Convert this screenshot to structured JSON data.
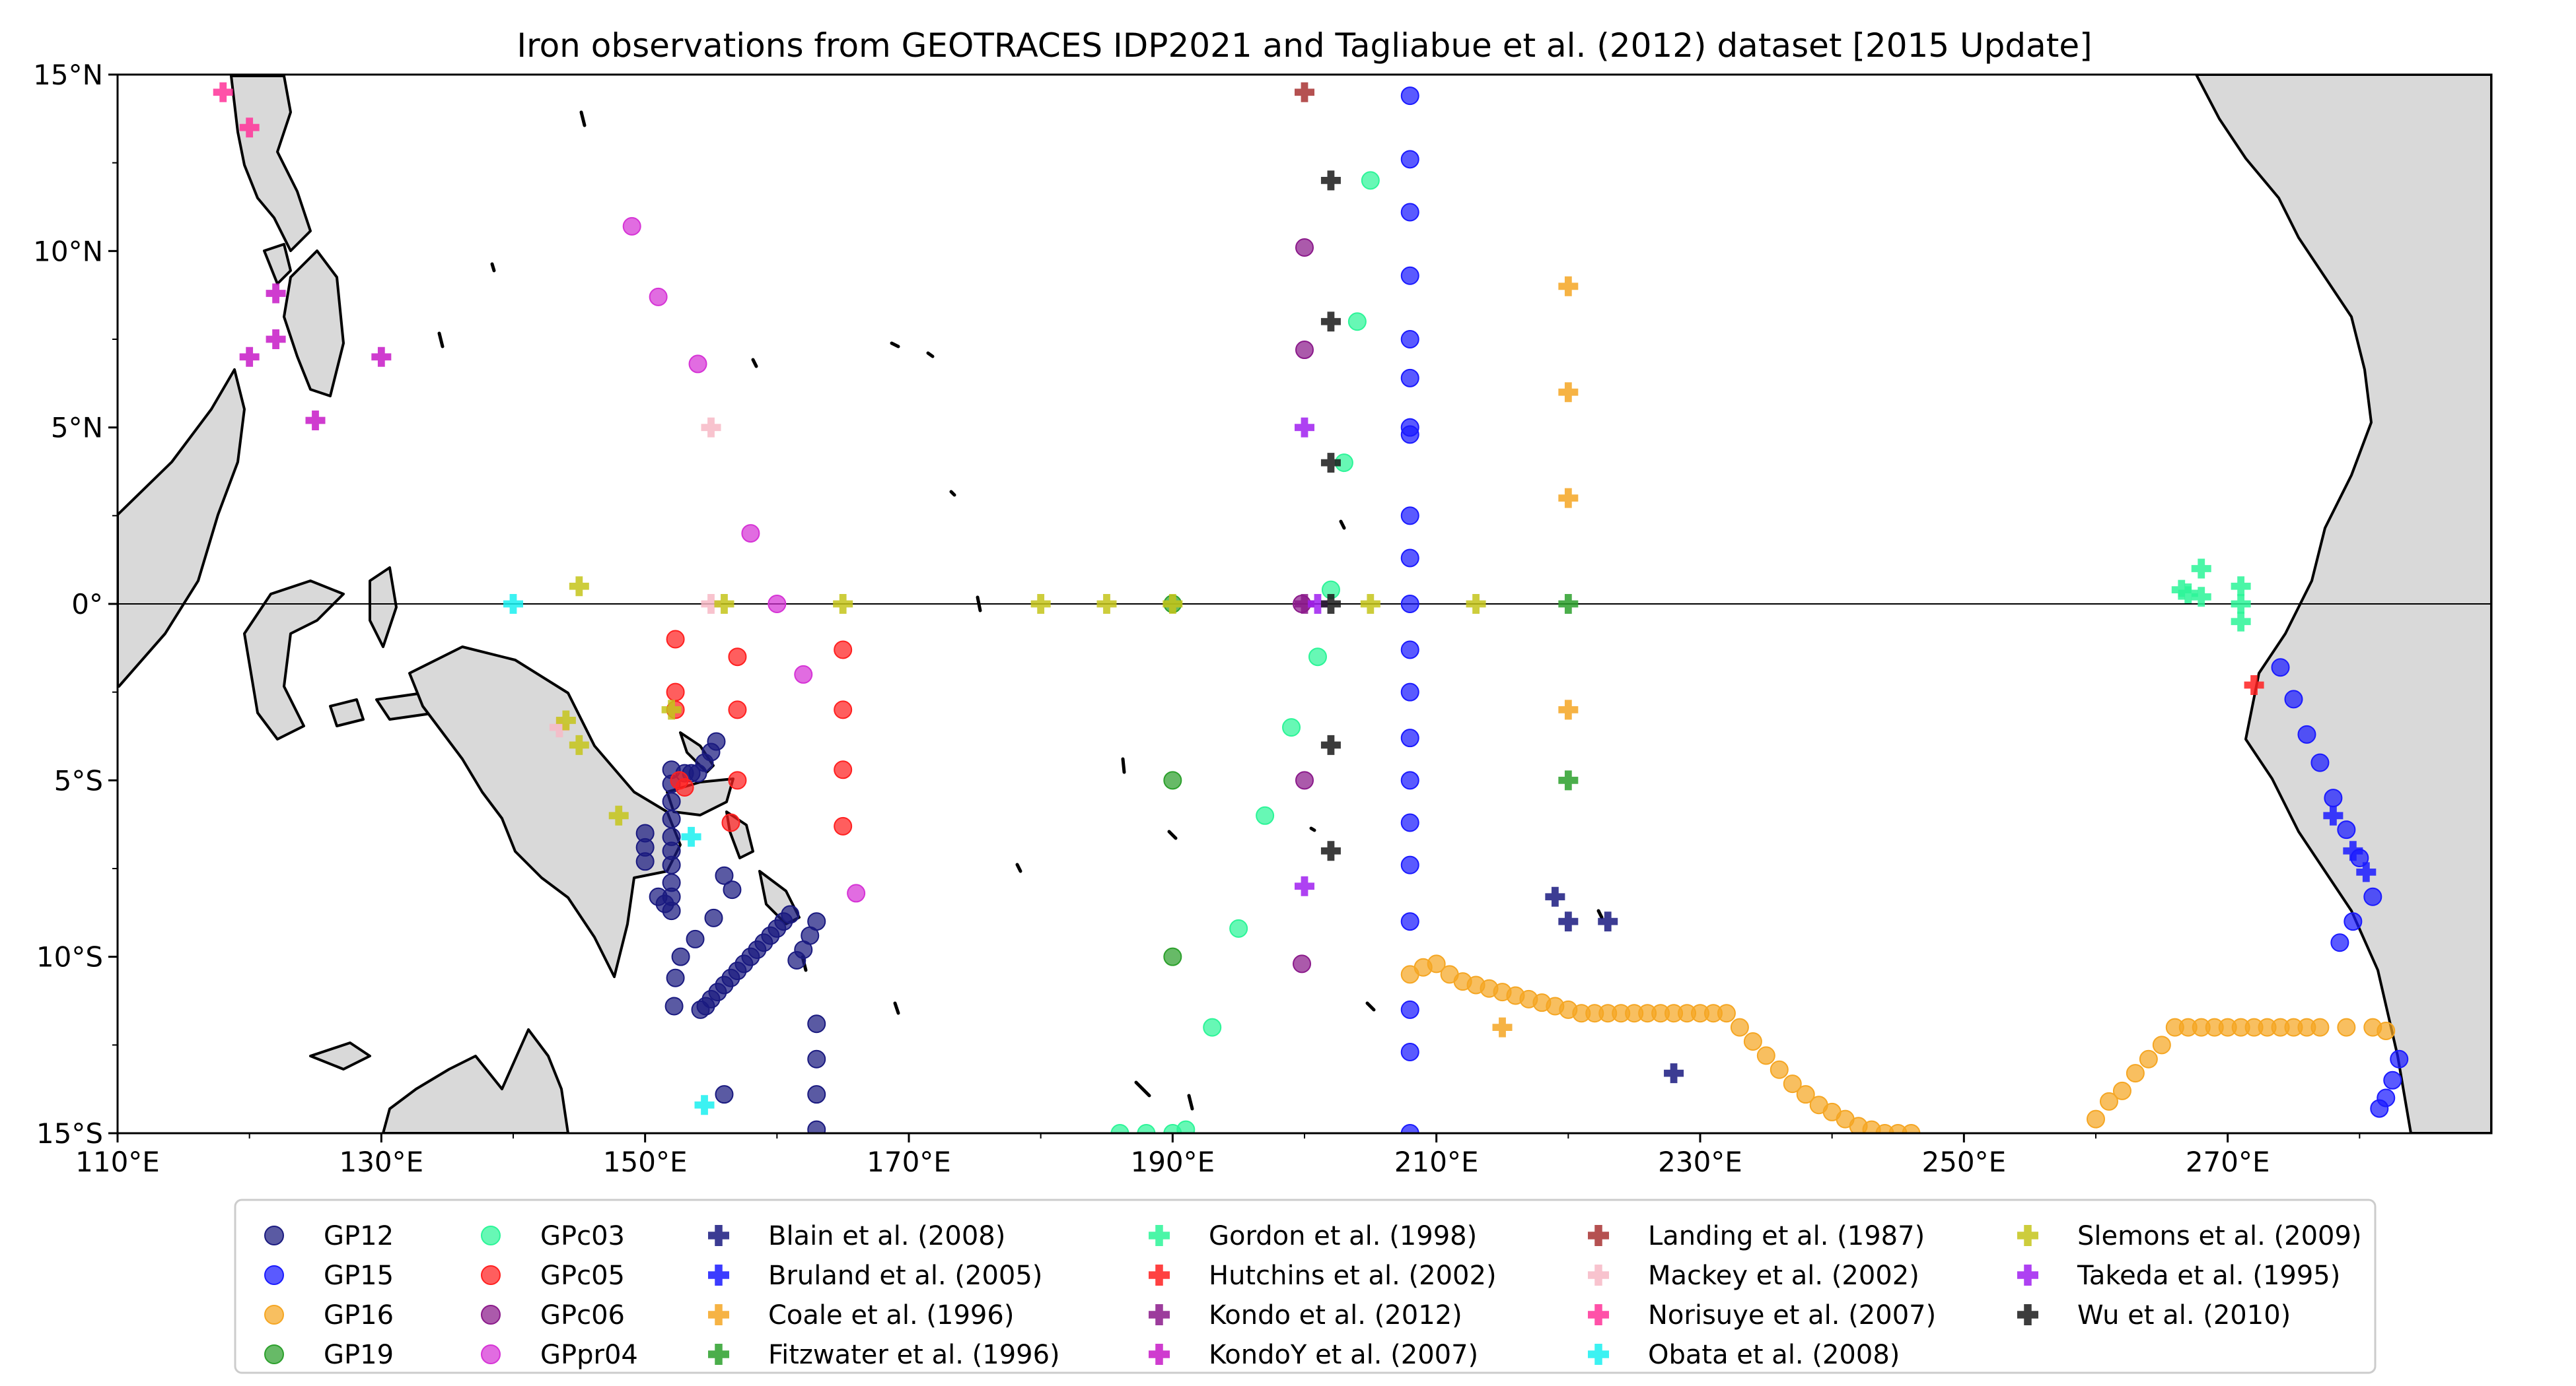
{
  "chart_data": {
    "type": "scatter",
    "title": "Iron observations from GEOTRACES IDP2021 and Tagliabue et al. (2012) dataset [2015 Update]",
    "xlim": [
      110,
      290
    ],
    "ylim": [
      -15,
      15
    ],
    "x_ticks": [
      110,
      130,
      150,
      170,
      190,
      210,
      230,
      250,
      270
    ],
    "x_tick_labels": [
      "110°E",
      "130°E",
      "150°E",
      "170°E",
      "190°E",
      "210°E",
      "230°E",
      "250°E",
      "270°E"
    ],
    "y_ticks": [
      15,
      10,
      5,
      0,
      -5,
      -10,
      -15
    ],
    "y_tick_labels": [
      "15°N",
      "10°N",
      "5°N",
      "0°",
      "5°S",
      "10°S",
      "15°S"
    ],
    "equator_line": true,
    "legend_placement": "bottom-center, outside, 6 columns",
    "colors": {
      "land": "#d9d9d9",
      "coast": "#000000"
    },
    "series": [
      {
        "name": "GP12",
        "marker": "circle",
        "color": "#1a1a80",
        "points": [
          [
            150,
            -6.5
          ],
          [
            150,
            -6.9
          ],
          [
            150,
            -7.3
          ],
          [
            151,
            -8.3
          ],
          [
            151.5,
            -8.5
          ],
          [
            152,
            -8.7
          ],
          [
            152,
            -8.3
          ],
          [
            152,
            -7.9
          ],
          [
            152,
            -7.4
          ],
          [
            152,
            -7.0
          ],
          [
            152,
            -6.6
          ],
          [
            152,
            -6.1
          ],
          [
            152,
            -5.6
          ],
          [
            152,
            -5.1
          ],
          [
            152,
            -4.7
          ],
          [
            152.3,
            -10.6
          ],
          [
            152.7,
            -10.0
          ],
          [
            153.8,
            -9.5
          ],
          [
            153,
            -4.8
          ],
          [
            153.5,
            -4.8
          ],
          [
            154,
            -4.8
          ],
          [
            154.5,
            -4.5
          ],
          [
            155,
            -4.2
          ],
          [
            155.4,
            -3.9
          ],
          [
            152.2,
            -11.4
          ],
          [
            154.2,
            -11.5
          ],
          [
            154.6,
            -11.4
          ],
          [
            155,
            -11.2
          ],
          [
            155.5,
            -11.0
          ],
          [
            156,
            -10.8
          ],
          [
            156.5,
            -10.6
          ],
          [
            157,
            -10.4
          ],
          [
            157.5,
            -10.2
          ],
          [
            158,
            -10.0
          ],
          [
            158.5,
            -9.8
          ],
          [
            159,
            -9.6
          ],
          [
            159.5,
            -9.4
          ],
          [
            160,
            -9.2
          ],
          [
            160.5,
            -9.0
          ],
          [
            161,
            -8.8
          ],
          [
            161.5,
            -10.1
          ],
          [
            162,
            -9.8
          ],
          [
            162.5,
            -9.4
          ],
          [
            163,
            -9.0
          ],
          [
            156,
            -7.7
          ],
          [
            156.6,
            -8.1
          ],
          [
            155.2,
            -8.9
          ],
          [
            163,
            -11.9
          ],
          [
            163,
            -12.9
          ],
          [
            163,
            -13.9
          ],
          [
            163,
            -14.9
          ],
          [
            156,
            -13.9
          ]
        ]
      },
      {
        "name": "GP15",
        "marker": "circle",
        "color": "#1a1aff",
        "points": [
          [
            208,
            14.4
          ],
          [
            208,
            12.6
          ],
          [
            208,
            11.1
          ],
          [
            208,
            9.3
          ],
          [
            208,
            7.5
          ],
          [
            208,
            6.4
          ],
          [
            208,
            5.0
          ],
          [
            208,
            4.8
          ],
          [
            208,
            2.5
          ],
          [
            208,
            1.3
          ],
          [
            208,
            0
          ],
          [
            208,
            -1.3
          ],
          [
            208,
            -2.5
          ],
          [
            208,
            -3.8
          ],
          [
            208,
            -5.0
          ],
          [
            208,
            -6.2
          ],
          [
            208,
            -7.4
          ],
          [
            208,
            -9.0
          ],
          [
            208,
            -11.5
          ],
          [
            208,
            -12.7
          ],
          [
            208,
            -15.0
          ],
          [
            274,
            -1.8
          ],
          [
            275,
            -2.7
          ],
          [
            276,
            -3.7
          ],
          [
            277,
            -4.5
          ],
          [
            278,
            -5.5
          ],
          [
            279,
            -6.4
          ],
          [
            280,
            -7.2
          ],
          [
            281,
            -8.3
          ],
          [
            279.5,
            -9.0
          ],
          [
            278.5,
            -9.6
          ],
          [
            283,
            -12.9
          ],
          [
            282.5,
            -13.5
          ],
          [
            282,
            -14.0
          ],
          [
            281.5,
            -14.3
          ]
        ]
      },
      {
        "name": "GP16",
        "marker": "circle",
        "color": "#f5a623",
        "points": [
          [
            208,
            -10.5
          ],
          [
            209,
            -10.3
          ],
          [
            210,
            -10.2
          ],
          [
            211,
            -10.5
          ],
          [
            212,
            -10.7
          ],
          [
            213,
            -10.8
          ],
          [
            214,
            -10.9
          ],
          [
            215,
            -11.0
          ],
          [
            216,
            -11.1
          ],
          [
            217,
            -11.2
          ],
          [
            218,
            -11.3
          ],
          [
            219,
            -11.4
          ],
          [
            220,
            -11.5
          ],
          [
            221,
            -11.6
          ],
          [
            222,
            -11.6
          ],
          [
            223,
            -11.6
          ],
          [
            224,
            -11.6
          ],
          [
            225,
            -11.6
          ],
          [
            226,
            -11.6
          ],
          [
            227,
            -11.6
          ],
          [
            228,
            -11.6
          ],
          [
            229,
            -11.6
          ],
          [
            230,
            -11.6
          ],
          [
            231,
            -11.6
          ],
          [
            232,
            -11.6
          ],
          [
            233,
            -12.0
          ],
          [
            234,
            -12.4
          ],
          [
            235,
            -12.8
          ],
          [
            236,
            -13.2
          ],
          [
            237,
            -13.6
          ],
          [
            238,
            -13.9
          ],
          [
            239,
            -14.2
          ],
          [
            240,
            -14.4
          ],
          [
            241,
            -14.6
          ],
          [
            242,
            -14.8
          ],
          [
            243,
            -14.9
          ],
          [
            244,
            -15.0
          ],
          [
            245,
            -15.0
          ],
          [
            246,
            -15.0
          ],
          [
            260,
            -14.6
          ],
          [
            261,
            -14.1
          ],
          [
            262,
            -13.8
          ],
          [
            263,
            -13.3
          ],
          [
            264,
            -12.9
          ],
          [
            265,
            -12.5
          ],
          [
            266,
            -12.0
          ],
          [
            267,
            -12.0
          ],
          [
            268,
            -12.0
          ],
          [
            269,
            -12.0
          ],
          [
            270,
            -12.0
          ],
          [
            271,
            -12.0
          ],
          [
            272,
            -12.0
          ],
          [
            273,
            -12.0
          ],
          [
            274,
            -12.0
          ],
          [
            275,
            -12.0
          ],
          [
            276,
            -12.0
          ],
          [
            277,
            -12.0
          ],
          [
            279,
            -12.0
          ],
          [
            281,
            -12.0
          ],
          [
            282,
            -12.1
          ]
        ]
      },
      {
        "name": "GP19",
        "marker": "circle",
        "color": "#2ca02c",
        "points": [
          [
            190,
            -5.0
          ],
          [
            190,
            -10.0
          ],
          [
            190,
            0
          ]
        ]
      },
      {
        "name": "GPc03",
        "marker": "circle",
        "color": "#2cf598",
        "points": [
          [
            205,
            12.0
          ],
          [
            204,
            8.0
          ],
          [
            203,
            4.0
          ],
          [
            202,
            0.4
          ],
          [
            201,
            -1.5
          ],
          [
            199,
            -3.5
          ],
          [
            197,
            -6.0
          ],
          [
            195,
            -9.2
          ],
          [
            193,
            -12.0
          ],
          [
            191,
            -14.9
          ],
          [
            190,
            -15.0
          ],
          [
            188,
            -15.0
          ],
          [
            186,
            -15.0
          ]
        ]
      },
      {
        "name": "GPc05",
        "marker": "circle",
        "color": "#ff2020",
        "points": [
          [
            152.3,
            -1.0
          ],
          [
            152.3,
            -2.5
          ],
          [
            152.3,
            -3.0
          ],
          [
            152.6,
            -5.0
          ],
          [
            153,
            -5.2
          ],
          [
            157,
            -1.5
          ],
          [
            157,
            -3.0
          ],
          [
            157,
            -5.0
          ],
          [
            156.5,
            -6.2
          ],
          [
            165,
            -1.3
          ],
          [
            165,
            -3.0
          ],
          [
            165,
            -4.7
          ],
          [
            165,
            -6.3
          ]
        ]
      },
      {
        "name": "GPc06",
        "marker": "circle",
        "color": "#8b1a8b",
        "points": [
          [
            200,
            10.1
          ],
          [
            200,
            7.2
          ],
          [
            199.8,
            0
          ],
          [
            200,
            -5.0
          ],
          [
            199.8,
            -10.2
          ]
        ]
      },
      {
        "name": "GPpr04",
        "marker": "circle",
        "color": "#d633d6",
        "points": [
          [
            149,
            10.7
          ],
          [
            151,
            8.7
          ],
          [
            154,
            6.8
          ],
          [
            158,
            2.0
          ],
          [
            160,
            0
          ],
          [
            162,
            -2.0
          ],
          [
            166,
            -8.2
          ]
        ]
      },
      {
        "name": "Blain et al. (2008)",
        "marker": "plus",
        "color": "#1a1a80",
        "points": [
          [
            219,
            -8.3
          ],
          [
            220,
            -9.0
          ],
          [
            223,
            -9.0
          ],
          [
            228,
            -13.3
          ]
        ]
      },
      {
        "name": "Bruland et al. (2005)",
        "marker": "plus",
        "color": "#1a1aff",
        "points": [
          [
            278,
            -6.0
          ],
          [
            279.5,
            -7.0
          ],
          [
            280.5,
            -7.6
          ]
        ]
      },
      {
        "name": "Coale et al. (1996)",
        "marker": "plus",
        "color": "#f5a623",
        "points": [
          [
            220,
            9.0
          ],
          [
            220,
            6.0
          ],
          [
            220,
            3.0
          ],
          [
            220,
            -3.0
          ],
          [
            215,
            -12.0
          ]
        ]
      },
      {
        "name": "Fitzwater et al. (1996)",
        "marker": "plus",
        "color": "#2ca02c",
        "points": [
          [
            220,
            0
          ],
          [
            220,
            -5.0
          ]
        ]
      },
      {
        "name": "Gordon et al. (1998)",
        "marker": "plus",
        "color": "#2cf598",
        "points": [
          [
            266.5,
            0.4
          ],
          [
            267,
            0.3
          ],
          [
            268,
            1.0
          ],
          [
            268,
            0.2
          ],
          [
            271,
            0.5
          ],
          [
            271,
            0
          ],
          [
            271,
            -0.5
          ]
        ]
      },
      {
        "name": "Hutchins et al. (2002)",
        "marker": "plus",
        "color": "#ff2020",
        "points": [
          [
            272,
            -2.3
          ]
        ]
      },
      {
        "name": "Kondo et al. (2012)",
        "marker": "plus",
        "color": "#8b1a8b",
        "points": [
          [
            200,
            0
          ]
        ]
      },
      {
        "name": "KondoY et al. (2007)",
        "marker": "plus",
        "color": "#c71ac7",
        "points": [
          [
            122,
            8.8
          ],
          [
            120,
            7.0
          ],
          [
            122,
            7.5
          ],
          [
            125,
            5.2
          ],
          [
            130,
            7.0
          ]
        ]
      },
      {
        "name": "Landing et al. (1987)",
        "marker": "plus",
        "color": "#a83232",
        "points": [
          [
            200,
            14.5
          ]
        ]
      },
      {
        "name": "Mackey et al. (2002)",
        "marker": "plus",
        "color": "#f7b9c6",
        "points": [
          [
            155,
            5.0
          ],
          [
            155,
            0
          ],
          [
            143.5,
            -3.5
          ]
        ]
      },
      {
        "name": "Norisuye et al. (2007)",
        "marker": "plus",
        "color": "#ff3399",
        "points": [
          [
            118,
            14.5
          ],
          [
            120,
            13.5
          ]
        ]
      },
      {
        "name": "Obata et al. (2008)",
        "marker": "plus",
        "color": "#1af0f0",
        "points": [
          [
            140,
            0
          ],
          [
            153.5,
            -6.6
          ],
          [
            154.5,
            -14.2
          ]
        ]
      },
      {
        "name": "Slemons et al. (2009)",
        "marker": "plus",
        "color": "#c4c41a",
        "points": [
          [
            145,
            0.5
          ],
          [
            144,
            -3.3
          ],
          [
            145,
            -4.0
          ],
          [
            148,
            -6.0
          ],
          [
            152,
            -3.0
          ],
          [
            156,
            0
          ],
          [
            165,
            0
          ],
          [
            180,
            0
          ],
          [
            185,
            0
          ],
          [
            190,
            0
          ],
          [
            205,
            0
          ],
          [
            213,
            0
          ]
        ]
      },
      {
        "name": "Takeda et al. (1995)",
        "marker": "plus",
        "color": "#a020f0",
        "points": [
          [
            200,
            5.0
          ],
          [
            201,
            0
          ],
          [
            200,
            -8.0
          ]
        ]
      },
      {
        "name": "Wu et al. (2010)",
        "marker": "plus",
        "color": "#1a1a1a",
        "points": [
          [
            202,
            12.0
          ],
          [
            202,
            8.0
          ],
          [
            202,
            4.0
          ],
          [
            202,
            0
          ],
          [
            202,
            -4.0
          ],
          [
            202,
            -7.0
          ]
        ]
      }
    ]
  }
}
